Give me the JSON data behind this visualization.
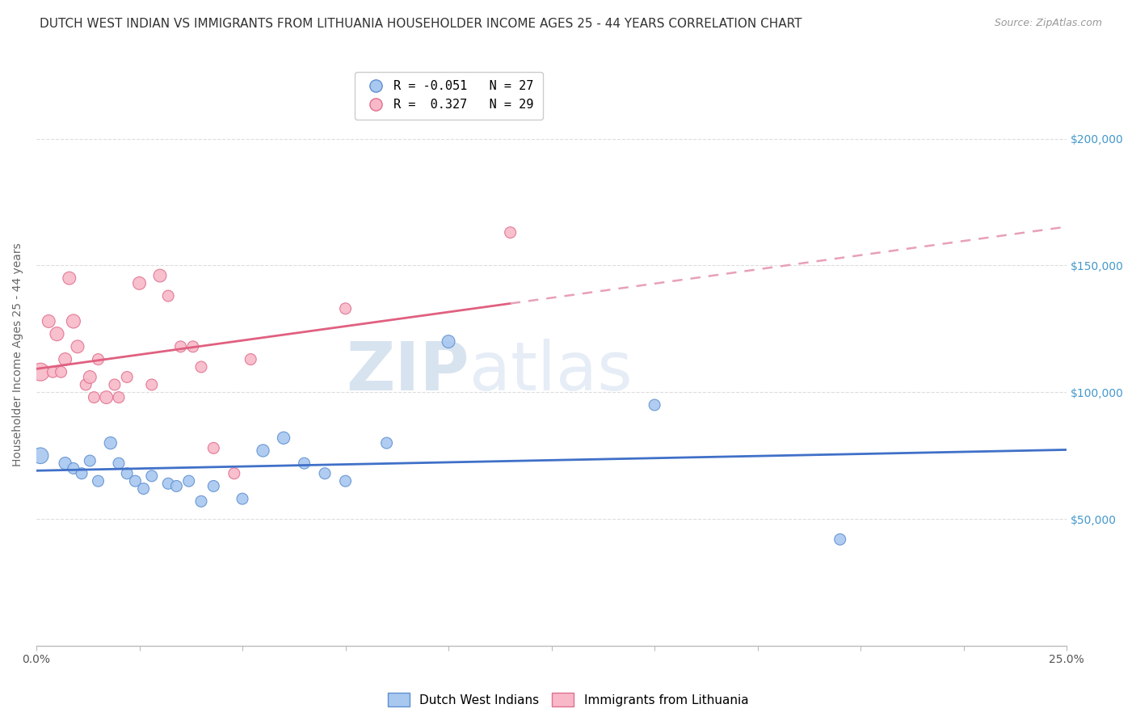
{
  "title": "DUTCH WEST INDIAN VS IMMIGRANTS FROM LITHUANIA HOUSEHOLDER INCOME AGES 25 - 44 YEARS CORRELATION CHART",
  "source": "Source: ZipAtlas.com",
  "ylabel": "Householder Income Ages 25 - 44 years",
  "ytick_labels": [
    "$50,000",
    "$100,000",
    "$150,000",
    "$200,000"
  ],
  "ytick_vals": [
    50000,
    100000,
    150000,
    200000
  ],
  "ylim": [
    0,
    230000
  ],
  "xlim": [
    0.0,
    0.25
  ],
  "watermark_left": "ZIP",
  "watermark_right": "atlas",
  "legend_blue_r": "R = -0.051",
  "legend_blue_n": "N = 27",
  "legend_pink_r": "R =  0.327",
  "legend_pink_n": "N = 29",
  "legend_label_blue": "Dutch West Indians",
  "legend_label_pink": "Immigrants from Lithuania",
  "blue_color": "#a8c8f0",
  "blue_edge_color": "#6090d0",
  "blue_line_color": "#4070c8",
  "pink_color": "#f8b8c8",
  "pink_edge_color": "#e07090",
  "pink_line_color": "#e06080",
  "pink_dash_color": "#e8a0b8",
  "blue_x": [
    0.001,
    0.007,
    0.009,
    0.011,
    0.013,
    0.015,
    0.018,
    0.02,
    0.022,
    0.024,
    0.026,
    0.028,
    0.032,
    0.034,
    0.037,
    0.04,
    0.043,
    0.05,
    0.055,
    0.06,
    0.065,
    0.07,
    0.075,
    0.085,
    0.1,
    0.15,
    0.195
  ],
  "blue_y": [
    75000,
    72000,
    70000,
    68000,
    73000,
    65000,
    80000,
    72000,
    68000,
    65000,
    62000,
    67000,
    64000,
    63000,
    65000,
    57000,
    63000,
    58000,
    77000,
    82000,
    72000,
    68000,
    65000,
    80000,
    120000,
    95000,
    42000
  ],
  "blue_size": [
    200,
    120,
    100,
    100,
    100,
    100,
    120,
    100,
    100,
    100,
    100,
    100,
    100,
    100,
    100,
    100,
    100,
    100,
    120,
    120,
    100,
    100,
    100,
    100,
    130,
    100,
    100
  ],
  "pink_x": [
    0.001,
    0.003,
    0.004,
    0.005,
    0.006,
    0.007,
    0.008,
    0.009,
    0.01,
    0.012,
    0.013,
    0.014,
    0.015,
    0.017,
    0.019,
    0.02,
    0.022,
    0.025,
    0.028,
    0.03,
    0.032,
    0.035,
    0.038,
    0.04,
    0.043,
    0.048,
    0.052,
    0.075,
    0.115
  ],
  "pink_y": [
    108000,
    128000,
    108000,
    123000,
    108000,
    113000,
    145000,
    128000,
    118000,
    103000,
    106000,
    98000,
    113000,
    98000,
    103000,
    98000,
    106000,
    143000,
    103000,
    146000,
    138000,
    118000,
    118000,
    110000,
    78000,
    68000,
    113000,
    133000,
    163000
  ],
  "pink_size": [
    250,
    130,
    100,
    150,
    100,
    130,
    130,
    150,
    130,
    100,
    130,
    100,
    100,
    130,
    100,
    100,
    100,
    130,
    100,
    130,
    100,
    100,
    100,
    100,
    100,
    100,
    100,
    100,
    100
  ],
  "background_color": "#ffffff",
  "grid_color": "#dddddd",
  "title_fontsize": 11,
  "source_fontsize": 9,
  "axis_label_fontsize": 10,
  "tick_fontsize": 10,
  "legend_fontsize": 11
}
